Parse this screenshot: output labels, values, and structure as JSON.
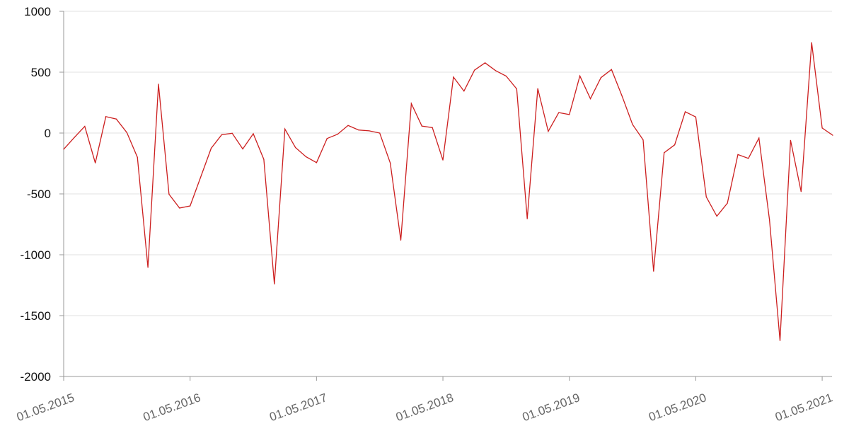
{
  "chart_data": {
    "type": "line",
    "title": "",
    "xlabel": "",
    "ylabel": "",
    "ylim": [
      -2000,
      1000
    ],
    "yticks": [
      "1000",
      "500",
      "0",
      "-500",
      "-1000",
      "-1500",
      "-2000"
    ],
    "ytick_values": [
      1000,
      500,
      0,
      -500,
      -1000,
      -1500,
      -2000
    ],
    "xticks": [
      "01.05.2015",
      "01.05.2016",
      "01.05.2017",
      "01.05.2018",
      "01.05.2019",
      "01.05.2020",
      "01.05.2021"
    ],
    "grid": "horizontal",
    "line_color": "#cc1f1f",
    "start_month": "2015-05",
    "x": [
      "2015-05",
      "2015-06",
      "2015-07",
      "2015-08",
      "2015-09",
      "2015-10",
      "2015-11",
      "2015-12",
      "2016-01",
      "2016-02",
      "2016-03",
      "2016-04",
      "2016-05",
      "2016-06",
      "2016-07",
      "2016-08",
      "2016-09",
      "2016-10",
      "2016-11",
      "2016-12",
      "2017-01",
      "2017-02",
      "2017-03",
      "2017-04",
      "2017-05",
      "2017-06",
      "2017-07",
      "2017-08",
      "2017-09",
      "2017-10",
      "2017-11",
      "2017-12",
      "2018-01",
      "2018-02",
      "2018-03",
      "2018-04",
      "2018-05",
      "2018-06",
      "2018-07",
      "2018-08",
      "2018-09",
      "2018-10",
      "2018-11",
      "2018-12",
      "2019-01",
      "2019-02",
      "2019-03",
      "2019-04",
      "2019-05",
      "2019-06",
      "2019-07",
      "2019-08",
      "2019-09",
      "2019-10",
      "2019-11",
      "2019-12",
      "2020-01",
      "2020-02",
      "2020-03",
      "2020-04",
      "2020-05",
      "2020-06",
      "2020-07",
      "2020-08",
      "2020-09",
      "2020-10",
      "2020-11",
      "2020-12",
      "2021-01",
      "2021-02",
      "2021-03",
      "2021-04",
      "2021-05",
      "2021-06"
    ],
    "values": [
      -133,
      -37,
      55,
      -246,
      135,
      115,
      4,
      -199,
      -1104,
      402,
      -503,
      -616,
      -599,
      -363,
      -125,
      -14,
      -2,
      -131,
      -6,
      -216,
      -1240,
      33,
      -119,
      -195,
      -243,
      -45,
      -10,
      62,
      25,
      18,
      0,
      -246,
      -880,
      242,
      57,
      45,
      -222,
      460,
      345,
      517,
      577,
      513,
      468,
      363,
      -704,
      365,
      14,
      168,
      152,
      469,
      282,
      455,
      522,
      304,
      70,
      -56,
      -1135,
      -162,
      -97,
      175,
      132,
      -525,
      -683,
      -576,
      -177,
      -208,
      -41,
      -712,
      -1705,
      -60,
      -481,
      743,
      41,
      -18
    ]
  }
}
